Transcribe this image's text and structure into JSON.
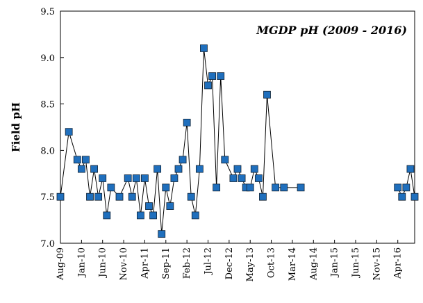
{
  "chart_data": {
    "type": "line",
    "title": "MGDP pH (2009 - 2016)",
    "y_label": "Field pH",
    "x": [
      "2009-08",
      "2009-10",
      "2009-12",
      "2010-01",
      "2010-02",
      "2010-03",
      "2010-04",
      "2010-05",
      "2010-06",
      "2010-07",
      "2010-08",
      "2010-10",
      "2010-12",
      "2011-01",
      "2011-02",
      "2011-03",
      "2011-04",
      "2011-05",
      "2011-06",
      "2011-07",
      "2011-08",
      "2011-09",
      "2011-10",
      "2011-11",
      "2011-12",
      "2012-01",
      "2012-02",
      "2012-03",
      "2012-04",
      "2012-05",
      "2012-06",
      "2012-07",
      "2012-08",
      "2012-09",
      "2012-10",
      "2012-11",
      "2013-01",
      "2013-02",
      "2013-03",
      "2013-04",
      "2013-05",
      "2013-06",
      "2013-07",
      "2013-08",
      "2013-09",
      "2013-11",
      "2014-01",
      "2014-05",
      "2015-06",
      "2016-04",
      "2016-05",
      "2016-06",
      "2016-07",
      "2016-08"
    ],
    "series": [
      {
        "name": "Field pH",
        "color": "#1f6fbd",
        "values": [
          7.5,
          8.2,
          7.9,
          7.8,
          7.9,
          7.5,
          7.8,
          7.5,
          7.7,
          7.3,
          7.6,
          7.5,
          7.7,
          7.5,
          7.7,
          7.3,
          7.7,
          7.4,
          7.3,
          7.8,
          7.1,
          7.6,
          7.4,
          7.7,
          7.8,
          7.9,
          8.3,
          7.5,
          7.3,
          7.8,
          9.1,
          8.7,
          8.8,
          7.6,
          8.8,
          7.9,
          7.7,
          7.8,
          7.7,
          7.6,
          7.6,
          7.8,
          7.7,
          7.5,
          8.6,
          7.6,
          7.6,
          7.6,
          null,
          7.6,
          7.5,
          7.6,
          7.8,
          7.5
        ]
      }
    ],
    "xlim": [
      "2009-08",
      "2016-08"
    ],
    "xticks": [
      {
        "value": "2009-08",
        "label": "Aug-09"
      },
      {
        "value": "2010-01",
        "label": "Jan-10"
      },
      {
        "value": "2010-06",
        "label": "Jun-10"
      },
      {
        "value": "2010-11",
        "label": "Nov-10"
      },
      {
        "value": "2011-04",
        "label": "Apr-11"
      },
      {
        "value": "2011-09",
        "label": "Sep-11"
      },
      {
        "value": "2012-02",
        "label": "Feb-12"
      },
      {
        "value": "2012-07",
        "label": "Jul-12"
      },
      {
        "value": "2012-12",
        "label": "Dec-12"
      },
      {
        "value": "2013-05",
        "label": "May-13"
      },
      {
        "value": "2013-10",
        "label": "Oct-13"
      },
      {
        "value": "2014-03",
        "label": "Mar-14"
      },
      {
        "value": "2014-08",
        "label": "Aug-14"
      },
      {
        "value": "2015-01",
        "label": "Jan-15"
      },
      {
        "value": "2015-06",
        "label": "Jun-15"
      },
      {
        "value": "2015-11",
        "label": "Nov-15"
      },
      {
        "value": "2016-04",
        "label": "Apr-16"
      }
    ],
    "ylim": [
      7,
      9.5
    ],
    "yticks": [
      {
        "value": 7,
        "label": "7.0"
      },
      7.5,
      {
        "value": 8,
        "label": "8.0"
      },
      8.5,
      {
        "value": 9,
        "label": "9.0"
      },
      9.5
    ]
  }
}
